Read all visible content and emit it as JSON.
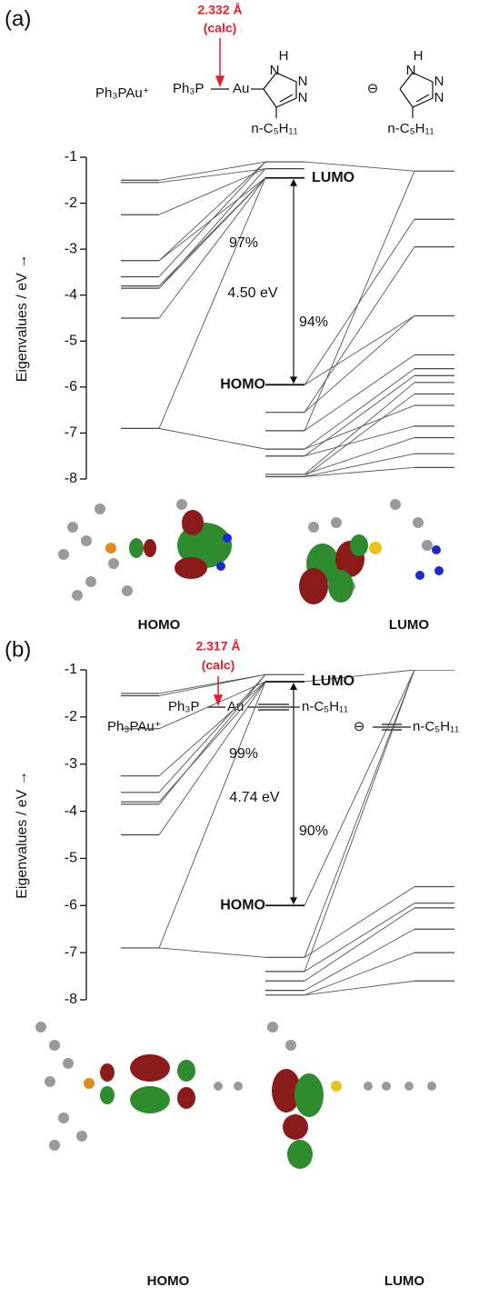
{
  "chart_data": [
    {
      "type": "energy-level",
      "panel_label": "(a)",
      "bond_length": "2.332 Å",
      "bond_note": "(calc)",
      "structure": [
        "Ph₃PAu⁺",
        "Ph₃P",
        "Au",
        "H",
        "N",
        "N",
        "N",
        "n-C₅H₁₁",
        "⊖",
        "H",
        "N",
        "N",
        "N",
        "n-C₅H₁₁"
      ],
      "ylabel": "Eigenvalues / eV →",
      "ylim": [
        -8,
        -1
      ],
      "yticks": [
        -1,
        -2,
        -3,
        -4,
        -5,
        -6,
        -7,
        -8
      ],
      "columns": [
        {
          "levels": [
            -1.5,
            -1.55,
            -2.25,
            -3.25,
            -3.6,
            -3.8,
            -3.85,
            -4.5,
            -6.9
          ]
        },
        {
          "levels": [
            -1.1,
            -1.25,
            {
              "value": -1.45,
              "label": "LUMO"
            },
            {
              "value": -5.95,
              "label": "HOMO"
            },
            -6.55,
            -6.95,
            -7.35,
            -7.5,
            -7.9,
            -7.95
          ]
        },
        {
          "levels": [
            -1.3,
            -2.35,
            -2.95,
            -4.45,
            -5.3,
            -5.6,
            -5.75,
            -5.9,
            -6.15,
            -6.4,
            -6.85,
            -7.1,
            -7.45,
            -7.75
          ]
        }
      ],
      "links_left": [
        [
          0,
          0
        ],
        [
          1,
          1
        ],
        [
          2,
          1
        ],
        [
          3,
          2
        ],
        [
          4,
          0
        ],
        [
          5,
          2
        ],
        [
          6,
          1
        ],
        [
          7,
          2
        ],
        [
          8,
          2
        ],
        [
          8,
          6
        ],
        [
          3,
          0
        ],
        [
          6,
          2
        ]
      ],
      "links_right": [
        [
          0,
          0
        ],
        [
          3,
          3
        ],
        [
          3,
          1
        ],
        [
          4,
          2
        ],
        [
          5,
          4
        ],
        [
          6,
          5
        ],
        [
          7,
          6
        ],
        [
          8,
          7
        ],
        [
          9,
          8
        ],
        [
          6,
          9
        ],
        [
          7,
          10
        ],
        [
          8,
          11
        ],
        [
          9,
          12
        ],
        [
          9,
          13
        ],
        [
          5,
          0
        ],
        [
          4,
          3
        ]
      ],
      "annotations": [
        "97%",
        "4.50 eV",
        "94%"
      ],
      "orbitals": [
        "HOMO",
        "LUMO"
      ]
    },
    {
      "type": "energy-level",
      "panel_label": "(b)",
      "bond_length": "2.317 Å",
      "bond_note": "(calc)",
      "structure": [
        "Ph₃P",
        "Au",
        "n-C₅H₁₁",
        "Ph₃PAu⁺",
        "⊖",
        "n-C₅H₁₁"
      ],
      "ylabel": "Eigenvalues / eV →",
      "ylim": [
        -8,
        -1
      ],
      "yticks": [
        -1,
        -2,
        -3,
        -4,
        -5,
        -6,
        -7,
        -8
      ],
      "columns": [
        {
          "levels": [
            -1.5,
            -1.55,
            -2.25,
            -3.25,
            -3.6,
            -3.8,
            -3.85,
            -4.5,
            -6.9
          ]
        },
        {
          "levels": [
            -1.1,
            {
              "value": -1.25,
              "label": "LUMO"
            },
            {
              "value": -6.0,
              "label": "HOMO"
            },
            -7.1,
            -7.4,
            -7.6,
            -7.8,
            -7.9
          ]
        },
        {
          "levels": [
            -1.0,
            -5.6,
            -5.95,
            -6.05,
            -6.5,
            -7.0,
            -7.6
          ]
        }
      ],
      "links_left": [
        [
          0,
          0
        ],
        [
          1,
          0
        ],
        [
          2,
          1
        ],
        [
          3,
          1
        ],
        [
          4,
          0
        ],
        [
          5,
          1
        ],
        [
          6,
          0
        ],
        [
          7,
          1
        ],
        [
          8,
          1
        ],
        [
          8,
          3
        ]
      ],
      "links_right": [
        [
          2,
          0
        ],
        [
          1,
          0
        ],
        [
          3,
          1
        ],
        [
          4,
          2
        ],
        [
          5,
          3
        ],
        [
          6,
          4
        ],
        [
          7,
          5
        ],
        [
          7,
          6
        ],
        [
          3,
          0
        ],
        [
          4,
          0
        ]
      ],
      "annotations": [
        "99%",
        "4.74 eV",
        "90%"
      ],
      "orbitals": [
        "HOMO",
        "LUMO"
      ]
    }
  ]
}
